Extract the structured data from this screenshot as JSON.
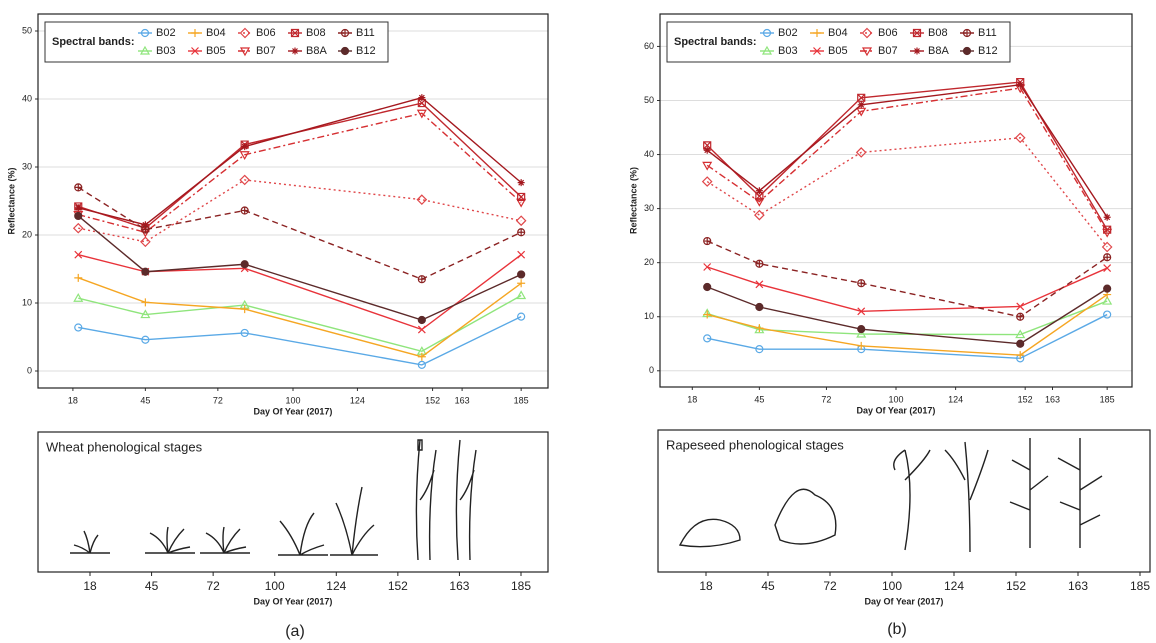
{
  "chart_data": [
    {
      "type": "line",
      "y_label": "Reflectance (%)",
      "x_label": "Day Of Year (2017)",
      "legend_title": "Spectral bands:",
      "x": [
        20,
        45,
        82,
        148,
        185
      ],
      "xlim": [
        5,
        195
      ],
      "xticks": [
        18,
        45,
        72,
        100,
        124,
        152,
        163,
        185
      ],
      "ylim": [
        -2.5,
        52.5
      ],
      "yticks": [
        0,
        10,
        20,
        30,
        40,
        50
      ],
      "grid": true,
      "series": [
        {
          "name": "B02",
          "color": "#5aa9e6",
          "dash": "solid",
          "marker": "circle",
          "values": [
            6.4,
            4.6,
            5.6,
            0.9,
            8.0
          ]
        },
        {
          "name": "B03",
          "color": "#8fe57c",
          "dash": "solid",
          "marker": "triangle",
          "values": [
            10.7,
            8.3,
            9.7,
            2.9,
            11.1
          ]
        },
        {
          "name": "B04",
          "color": "#f5a623",
          "dash": "solid",
          "marker": "plus",
          "values": [
            13.7,
            10.1,
            9.1,
            2.1,
            12.9
          ]
        },
        {
          "name": "B05",
          "color": "#e8333a",
          "dash": "solid",
          "marker": "x",
          "values": [
            17.1,
            14.6,
            15.1,
            6.1,
            17.1
          ]
        },
        {
          "name": "B06",
          "color": "#e0474a",
          "dash": "dotted",
          "marker": "diamond",
          "values": [
            21.0,
            19.0,
            28.1,
            25.2,
            22.1
          ]
        },
        {
          "name": "B07",
          "color": "#d62f32",
          "dash": "dashdot",
          "marker": "triangle-down",
          "values": [
            23.0,
            20.4,
            31.8,
            37.9,
            24.8
          ]
        },
        {
          "name": "B08",
          "color": "#c0272d",
          "dash": "solid",
          "marker": "square",
          "values": [
            24.2,
            21.0,
            33.3,
            39.4,
            25.6
          ]
        },
        {
          "name": "B8A",
          "color": "#a4181e",
          "dash": "solid",
          "marker": "asterisk",
          "values": [
            24.0,
            21.5,
            33.0,
            40.2,
            27.7
          ]
        },
        {
          "name": "B11",
          "color": "#8b2222",
          "dash": "dashed",
          "marker": "circle-plus",
          "values": [
            27.0,
            20.8,
            23.6,
            13.5,
            20.4
          ]
        },
        {
          "name": "B12",
          "color": "#5c2a2a",
          "dash": "solid",
          "marker": "circle-dot",
          "values": [
            22.8,
            14.6,
            15.7,
            7.5,
            14.2
          ]
        }
      ],
      "stages": {
        "title": "Wheat phenological stages",
        "categories": [
          "18",
          "45",
          "72",
          "100",
          "124",
          "152",
          "163",
          "185"
        ],
        "x_label": "Day Of Year (2017)"
      },
      "panel_label": "(a)"
    },
    {
      "type": "line",
      "y_label": "Reflectance (%)",
      "x_label": "Day Of Year (2017)",
      "legend_title": "Spectral bands:",
      "x": [
        24,
        45,
        86,
        150,
        185
      ],
      "xlim": [
        5,
        195
      ],
      "xticks": [
        18,
        45,
        72,
        100,
        124,
        152,
        163,
        185
      ],
      "ylim": [
        -3,
        66
      ],
      "yticks": [
        0,
        10,
        20,
        30,
        40,
        50,
        60
      ],
      "grid": true,
      "series": [
        {
          "name": "B02",
          "color": "#5aa9e6",
          "dash": "solid",
          "marker": "circle",
          "values": [
            6.0,
            4.0,
            4.0,
            2.3,
            10.4
          ]
        },
        {
          "name": "B03",
          "color": "#8fe57c",
          "dash": "solid",
          "marker": "triangle",
          "values": [
            10.6,
            7.6,
            6.8,
            6.7,
            12.9
          ]
        },
        {
          "name": "B04",
          "color": "#f5a623",
          "dash": "solid",
          "marker": "plus",
          "values": [
            10.4,
            7.9,
            4.6,
            2.9,
            14.1
          ]
        },
        {
          "name": "B05",
          "color": "#e8333a",
          "dash": "solid",
          "marker": "x",
          "values": [
            19.2,
            16.0,
            11.0,
            11.9,
            19.0
          ]
        },
        {
          "name": "B06",
          "color": "#e0474a",
          "dash": "dotted",
          "marker": "diamond",
          "values": [
            35.0,
            28.8,
            40.4,
            43.1,
            22.9
          ]
        },
        {
          "name": "B07",
          "color": "#d62f32",
          "dash": "dashdot",
          "marker": "triangle-down",
          "values": [
            38.0,
            31.3,
            48.0,
            52.3,
            25.6
          ]
        },
        {
          "name": "B08",
          "color": "#c0272d",
          "dash": "solid",
          "marker": "square",
          "values": [
            41.7,
            32.3,
            50.5,
            53.4,
            26.1
          ]
        },
        {
          "name": "B8A",
          "color": "#a4181e",
          "dash": "solid",
          "marker": "asterisk",
          "values": [
            40.8,
            33.3,
            49.2,
            52.9,
            28.4
          ]
        },
        {
          "name": "B11",
          "color": "#8b2222",
          "dash": "dashed",
          "marker": "circle-plus",
          "values": [
            24.0,
            19.8,
            16.2,
            10.0,
            21.0
          ]
        },
        {
          "name": "B12",
          "color": "#5c2a2a",
          "dash": "solid",
          "marker": "circle-dot",
          "values": [
            15.5,
            11.8,
            7.7,
            5.0,
            15.2
          ]
        }
      ],
      "stages": {
        "title": "Rapeseed phenological stages",
        "categories": [
          "18",
          "45",
          "72",
          "100",
          "124",
          "152",
          "163",
          "185"
        ],
        "x_label": "Day Of Year (2017)"
      },
      "panel_label": "(b)"
    }
  ]
}
